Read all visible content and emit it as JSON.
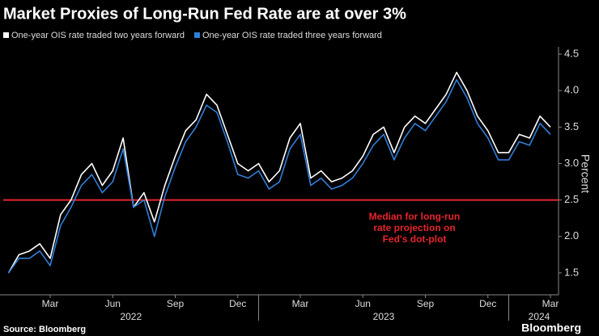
{
  "chart_data": {
    "type": "line",
    "title": "Market Proxies of Long-Run Fed Rate are at over 3%",
    "y_label": "Percent",
    "source": "Source: Bloomberg",
    "brand": "Bloomberg",
    "categories": [
      null,
      null,
      null,
      null,
      "Mar",
      null,
      null,
      null,
      null,
      null,
      "Jun",
      null,
      null,
      null,
      null,
      null,
      "Sep",
      null,
      null,
      null,
      null,
      null,
      "Dec",
      null,
      null,
      null,
      null,
      null,
      "Mar",
      null,
      null,
      null,
      null,
      null,
      "Jun",
      null,
      null,
      null,
      null,
      null,
      "Sep",
      null,
      null,
      null,
      null,
      null,
      "Dec",
      null,
      null,
      null,
      null,
      null,
      "Mar"
    ],
    "x_groups": [
      "2022",
      "2023",
      "2024"
    ],
    "series": [
      {
        "name": "One-year OIS rate traded two years forward",
        "color": "#ffffff",
        "values": [
          1.5,
          1.75,
          1.8,
          1.9,
          1.7,
          2.3,
          2.5,
          2.85,
          3.0,
          2.7,
          2.9,
          3.35,
          2.4,
          2.6,
          2.2,
          2.7,
          3.1,
          3.45,
          3.6,
          3.95,
          3.8,
          3.4,
          3.0,
          2.9,
          3.0,
          2.75,
          2.9,
          3.35,
          3.55,
          2.8,
          2.9,
          2.75,
          2.8,
          2.9,
          3.1,
          3.4,
          3.5,
          3.15,
          3.5,
          3.65,
          3.55,
          3.75,
          3.95,
          4.25,
          4.0,
          3.65,
          3.45,
          3.15,
          3.15,
          3.4,
          3.35,
          3.65,
          3.5
        ]
      },
      {
        "name": "One-year OIS rate traded three years forward",
        "color": "#2f7ed8",
        "values": [
          1.5,
          1.7,
          1.7,
          1.8,
          1.6,
          2.15,
          2.4,
          2.7,
          2.85,
          2.6,
          2.75,
          3.2,
          2.4,
          2.5,
          2.0,
          2.55,
          2.95,
          3.3,
          3.5,
          3.8,
          3.7,
          3.3,
          2.85,
          2.8,
          2.9,
          2.65,
          2.75,
          3.2,
          3.4,
          2.7,
          2.8,
          2.65,
          2.7,
          2.8,
          3.0,
          3.25,
          3.4,
          3.05,
          3.35,
          3.55,
          3.45,
          3.65,
          3.85,
          4.15,
          3.9,
          3.55,
          3.35,
          3.05,
          3.05,
          3.3,
          3.25,
          3.55,
          3.4
        ]
      }
    ],
    "ylim": [
      1.2,
      4.6
    ],
    "yticks": [
      {
        "value": 1.5,
        "label": "1.5"
      },
      {
        "value": 2,
        "label": "2.0"
      },
      2.5,
      {
        "value": 3,
        "label": "3.0"
      },
      3.5,
      {
        "value": 4,
        "label": "4.0"
      },
      4.5
    ],
    "reference_line": {
      "value": 2.5,
      "color": "#e8242e",
      "label": [
        "Median for long-run",
        "rate projection on",
        "Fed's dot-plot"
      ]
    },
    "legend": "top-left",
    "y_axis_side": "right"
  }
}
